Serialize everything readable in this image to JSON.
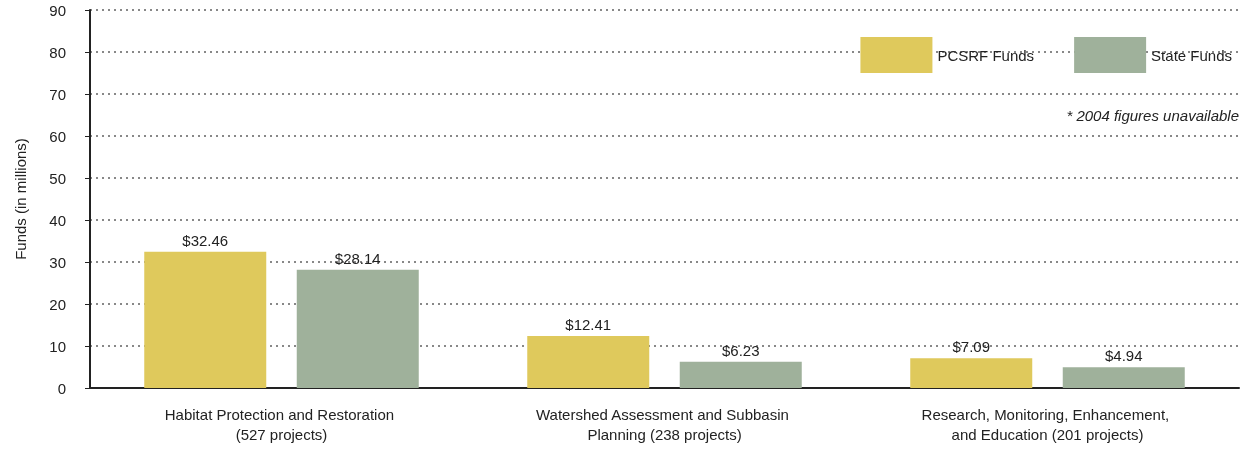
{
  "chart_data": {
    "type": "bar",
    "ylabel": "Funds (in millions)",
    "categories": [
      "Habitat Protection and Restoration (527 projects)",
      "Watershed Assessment and Subbasin Planning (238 projects)",
      "Research, Monitoring, Enhancement, and Education (201 projects)"
    ],
    "series": [
      {
        "name": "PCSRF Funds",
        "color": "#dfc95c",
        "values": [
          32.46,
          12.41,
          7.09
        ],
        "value_labels": [
          "$32.46",
          "$12.41",
          "$7.09"
        ]
      },
      {
        "name": "State Funds",
        "color": "#9fb19b",
        "values": [
          28.14,
          6.23,
          4.94
        ],
        "value_labels": [
          "$28.14",
          "$6.23",
          "$4.94"
        ]
      }
    ],
    "ylim": [
      0,
      90
    ],
    "yticks": [
      0,
      10,
      20,
      30,
      40,
      50,
      60,
      70,
      80,
      90
    ],
    "grid": "y",
    "legend": "top right",
    "annotations": [
      "* 2004 figures unavailable"
    ]
  }
}
